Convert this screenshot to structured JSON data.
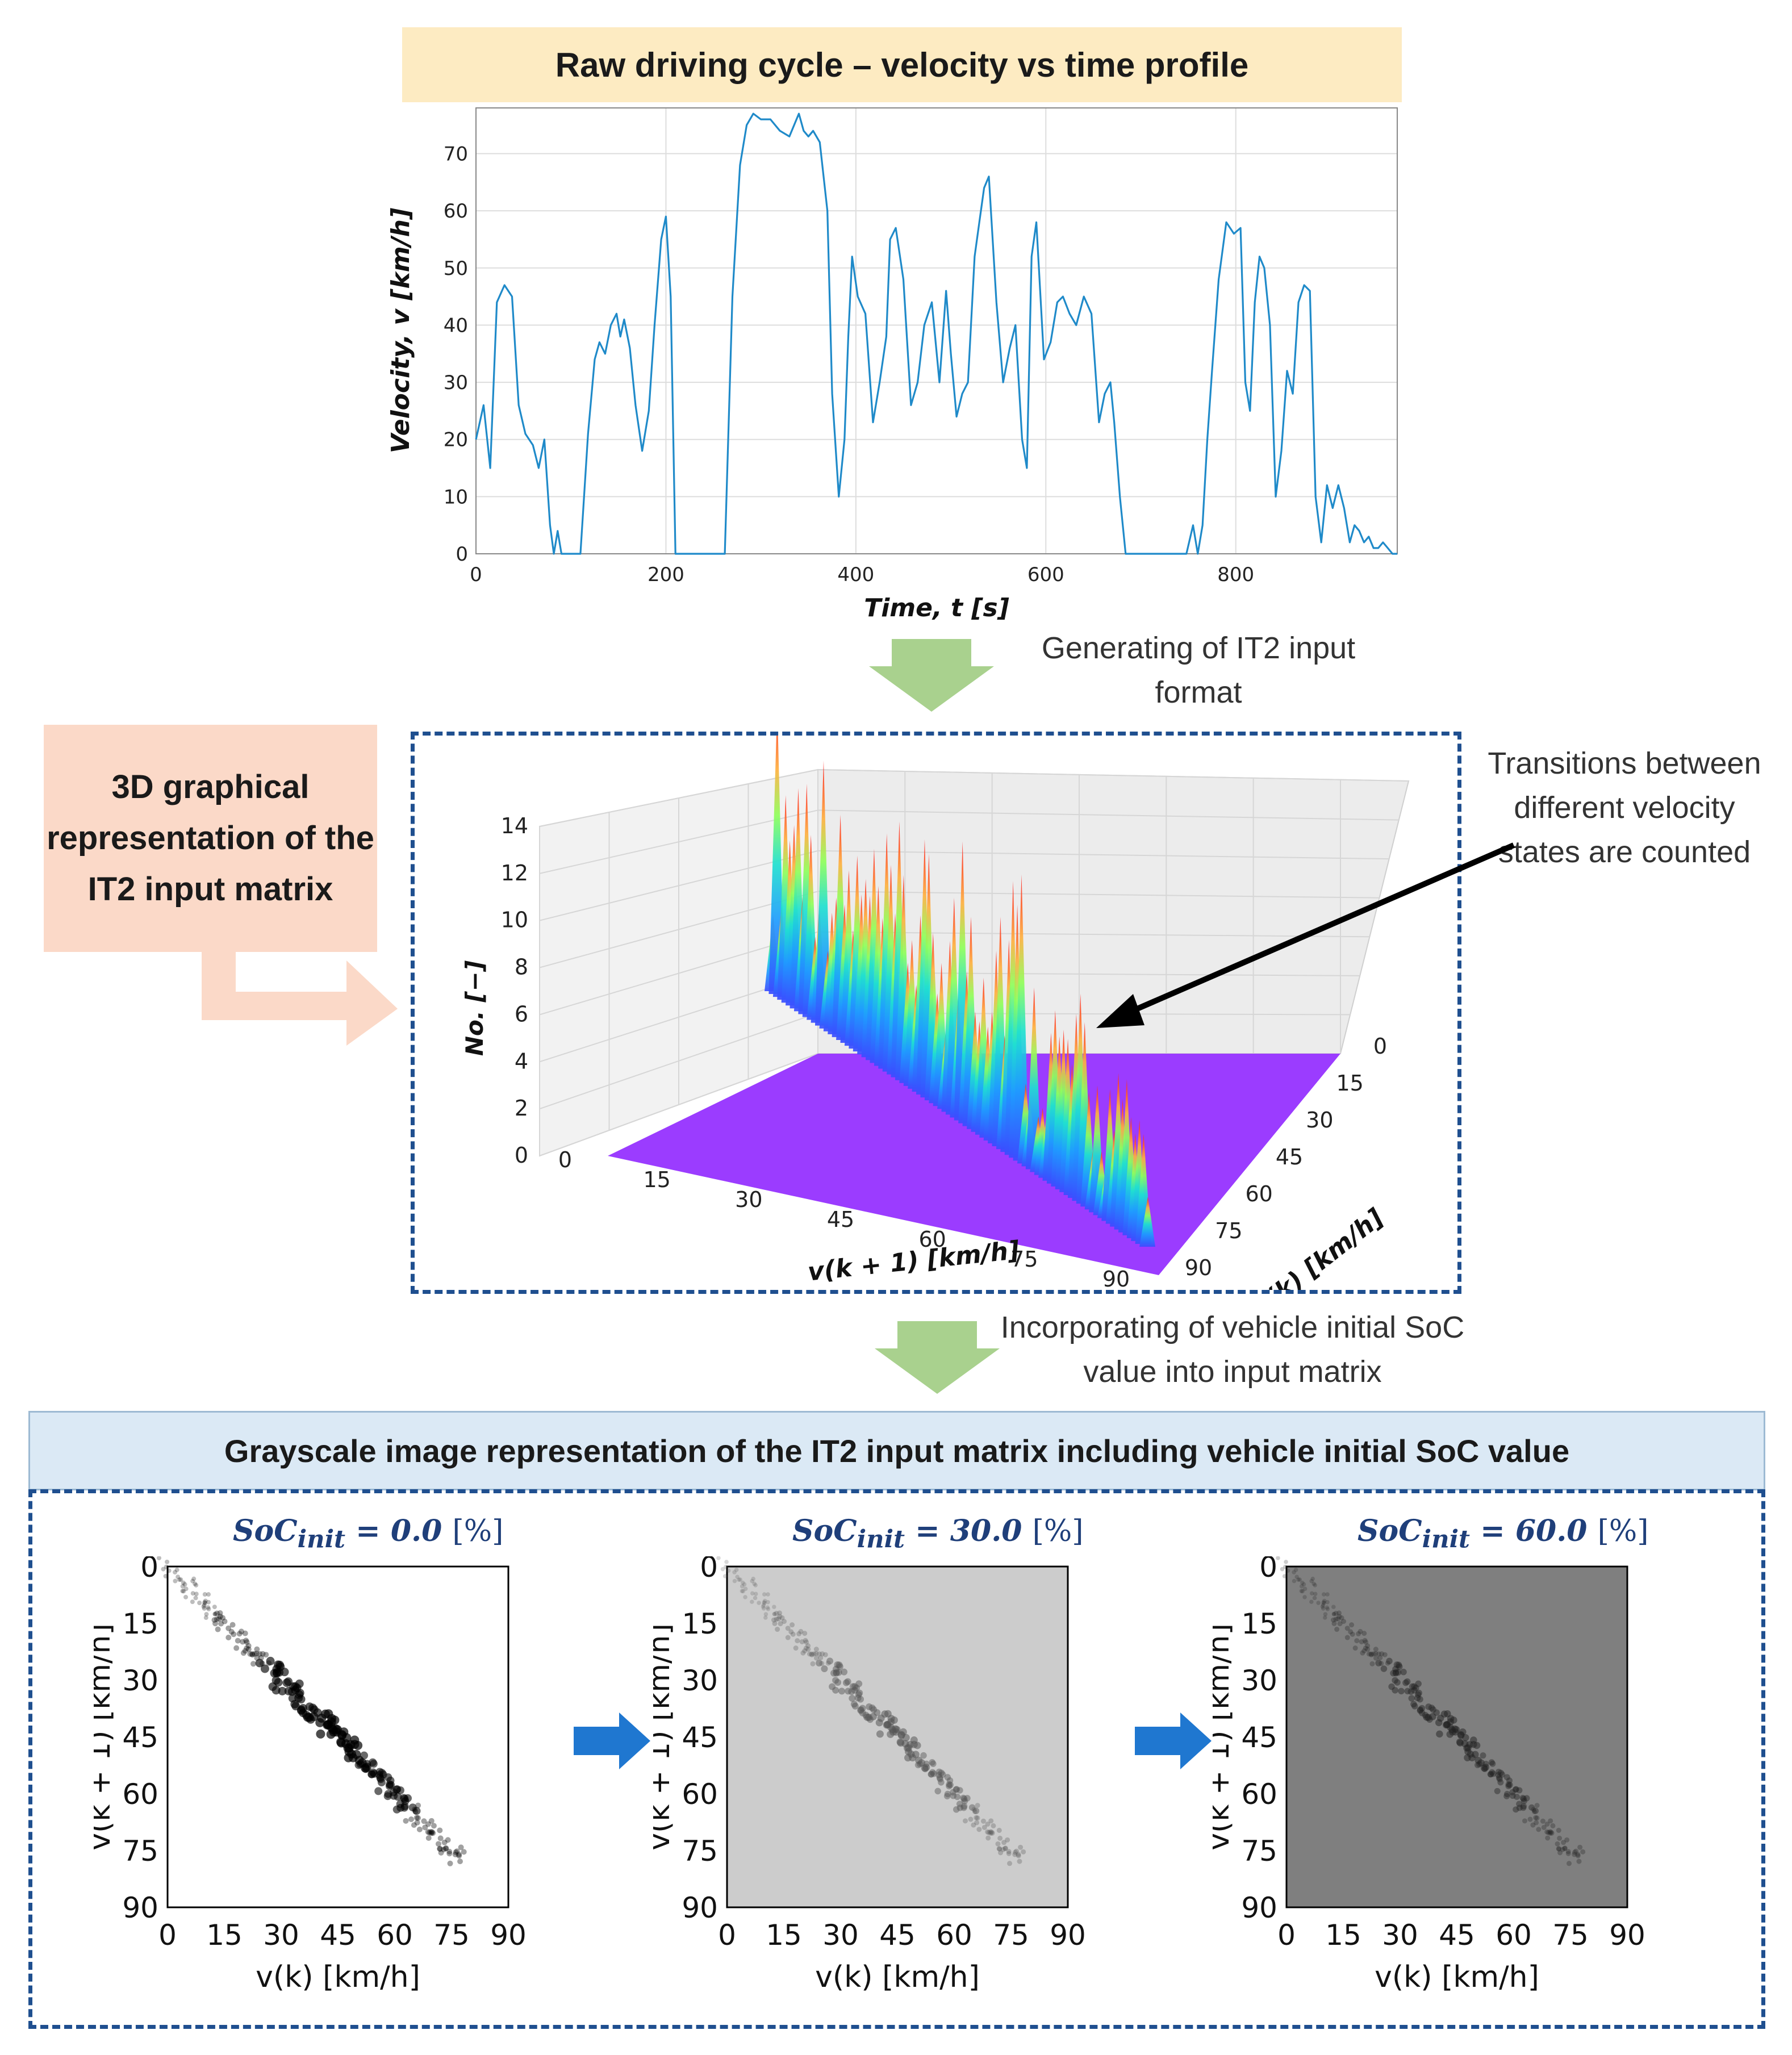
{
  "top_chart": {
    "banner": "Raw driving cycle – velocity vs time profile",
    "chart_data": {
      "type": "line",
      "title": "Raw driving cycle – velocity vs time profile",
      "xlabel": "Time, t [s]",
      "ylabel": "Velocity, v [km/h]",
      "xlim": [
        0,
        970
      ],
      "ylim": [
        0,
        78
      ],
      "xticks": [
        "0",
        "200",
        "400",
        "600",
        "800"
      ],
      "yticks": [
        "0",
        "10",
        "20",
        "30",
        "40",
        "50",
        "60",
        "70"
      ],
      "grid": true,
      "x": [
        0,
        8,
        15,
        22,
        30,
        38,
        45,
        52,
        60,
        66,
        72,
        78,
        82,
        86,
        90,
        100,
        105,
        110,
        118,
        125,
        130,
        136,
        142,
        148,
        152,
        156,
        162,
        168,
        175,
        182,
        188,
        195,
        200,
        205,
        210,
        215,
        225,
        235,
        250,
        262,
        270,
        278,
        285,
        292,
        300,
        310,
        320,
        330,
        340,
        345,
        350,
        355,
        362,
        370,
        375,
        382,
        388,
        392,
        396,
        402,
        410,
        418,
        425,
        432,
        436,
        442,
        450,
        458,
        465,
        472,
        480,
        488,
        495,
        500,
        506,
        512,
        518,
        525,
        530,
        535,
        540,
        548,
        555,
        562,
        568,
        575,
        580,
        585,
        590,
        598,
        605,
        612,
        618,
        625,
        632,
        640,
        648,
        656,
        662,
        668,
        672,
        678,
        684,
        690,
        695,
        700,
        705,
        712,
        720,
        728,
        738,
        748,
        755,
        760,
        765,
        770,
        775,
        782,
        790,
        798,
        805,
        810,
        815,
        820,
        825,
        830,
        836,
        842,
        848,
        854,
        860,
        866,
        872,
        878,
        884,
        890,
        896,
        902,
        908,
        914,
        920,
        925,
        930,
        935,
        940,
        945,
        950,
        955,
        960,
        965,
        970
      ],
      "values": [
        20,
        26,
        15,
        44,
        47,
        45,
        26,
        21,
        19,
        15,
        20,
        5,
        0,
        4,
        0,
        0,
        0,
        0,
        21,
        34,
        37,
        35,
        40,
        42,
        38,
        41,
        36,
        26,
        18,
        25,
        40,
        55,
        59,
        45,
        0,
        0,
        0,
        0,
        0,
        0,
        45,
        68,
        75,
        77,
        76,
        76,
        74,
        73,
        77,
        74,
        73,
        74,
        72,
        60,
        28,
        10,
        20,
        38,
        52,
        45,
        42,
        23,
        30,
        38,
        55,
        57,
        48,
        26,
        30,
        40,
        44,
        30,
        46,
        35,
        24,
        28,
        30,
        52,
        58,
        64,
        66,
        44,
        30,
        36,
        40,
        20,
        15,
        52,
        58,
        34,
        37,
        44,
        45,
        42,
        40,
        45,
        42,
        23,
        28,
        30,
        23,
        10,
        0,
        0,
        0,
        0,
        0,
        0,
        0,
        0,
        0,
        0,
        5,
        0,
        5,
        20,
        32,
        48,
        58,
        56,
        57,
        30,
        25,
        44,
        52,
        50,
        40,
        10,
        18,
        32,
        28,
        44,
        47,
        46,
        10,
        2,
        12,
        8,
        12,
        8,
        2,
        5,
        4,
        2,
        3,
        1,
        1,
        2,
        1,
        0,
        0
      ]
    }
  },
  "arrow1_label": "Generating of IT2 input format",
  "callout_3d": "3D graphical representation of the IT2 input matrix",
  "transitions_note": "Transitions between different velocity states are counted",
  "surface_chart": {
    "chart_data": {
      "type": "surface3d",
      "zlabel": "No. [−]",
      "xlabel": "v(k + 1) [km/h]",
      "ylabel": "v(k) [km/h]",
      "zlim": [
        0,
        14
      ],
      "zticks": [
        "0",
        "2",
        "4",
        "6",
        "8",
        "10",
        "12",
        "14"
      ],
      "xticks": [
        "0",
        "15",
        "30",
        "45",
        "60",
        "75",
        "90"
      ],
      "yticks": [
        "0",
        "15",
        "30",
        "45",
        "60",
        "75",
        "90"
      ],
      "colormap": "rainbow (purple → blue → cyan → green → yellow → red)",
      "peak_velocities": [
        0,
        15,
        30,
        45,
        60,
        75
      ],
      "peak_counts": [
        13,
        10,
        11,
        14,
        9,
        7
      ]
    }
  },
  "arrow2_label": "Incorporating of vehicle initial SoC value into input matrix",
  "grayscale_banner": "Grayscale image representation of the IT2 input matrix including vehicle initial SoC value",
  "gray_panels": [
    {
      "soc_symbol": "SoC",
      "soc_sub": "init",
      "soc_eq": " = 0.0 ",
      "soc_unit": "[%]",
      "background": "#ffffff",
      "ylabel": "v(k + 1) [km/h]",
      "xlabel": "v(k) [km/h]",
      "ticks": [
        "0",
        "15",
        "30",
        "45",
        "60",
        "75",
        "90"
      ],
      "chart_data": {
        "type": "heatmap",
        "soc_init_percent": 0.0,
        "diagonal_darkness": [
          0.2,
          0.4,
          0.9,
          1.0,
          0.8,
          0.4
        ]
      }
    },
    {
      "soc_symbol": "SoC",
      "soc_sub": "init",
      "soc_eq": " = 30.0 ",
      "soc_unit": "[%]",
      "background": "#cccccc",
      "ylabel": "v(k + 1) [km/h]",
      "xlabel": "v(k) [km/h]",
      "ticks": [
        "0",
        "15",
        "30",
        "45",
        "60",
        "75",
        "90"
      ],
      "chart_data": {
        "type": "heatmap",
        "soc_init_percent": 30.0,
        "diagonal_darkness": [
          0.15,
          0.3,
          0.6,
          0.7,
          0.55,
          0.3
        ]
      }
    },
    {
      "soc_symbol": "SoC",
      "soc_sub": "init",
      "soc_eq": " = 60.0 ",
      "soc_unit": "[%]",
      "background": "#7f7f7f",
      "ylabel": "v(k + 1) [km/h]",
      "xlabel": "v(k) [km/h]",
      "ticks": [
        "0",
        "15",
        "30",
        "45",
        "60",
        "75",
        "90"
      ],
      "chart_data": {
        "type": "heatmap",
        "soc_init_percent": 60.0,
        "diagonal_darkness": [
          0.15,
          0.3,
          0.55,
          0.65,
          0.5,
          0.3
        ]
      }
    }
  ],
  "colors": {
    "line": "#1f8ac9",
    "arrow_green": "#a9d18e",
    "arrow_blue": "#1f77d0",
    "arrow_salmon": "#fbd9c8",
    "dash": "#1f4f8f",
    "surface_base": "#9b3cff"
  }
}
